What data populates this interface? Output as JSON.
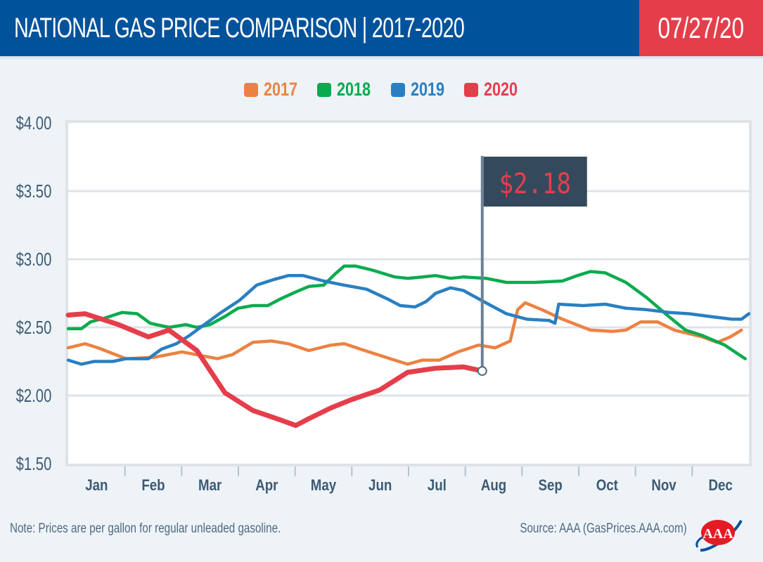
{
  "header": {
    "title": "NATIONAL GAS PRICE COMPARISON | 2017-2020",
    "date": "07/27/20"
  },
  "colors": {
    "header_blue": "#00529b",
    "header_red": "#e53e4b",
    "flag_bg": "#344a5c",
    "flag_text": "#e53e4b",
    "axis_text": "#3d5a73"
  },
  "footer": {
    "note": "Note: Prices are per gallon for regular unleaded gasoline.",
    "source": "Source: AAA (GasPrices.AAA.com)",
    "logo": "aaa-logo-icon"
  },
  "chart_data": {
    "type": "line",
    "title": "National Gas Price Comparison | 2017-2020",
    "xlabel": "",
    "ylabel": "",
    "x_unit": "day of year",
    "xlim": [
      0,
      365
    ],
    "ylim": [
      1.5,
      4.0
    ],
    "yticks": [
      1.5,
      2.0,
      2.5,
      3.0,
      3.5,
      4.0
    ],
    "ytick_labels": [
      "$1.50",
      "$2.00",
      "$2.50",
      "$3.00",
      "$3.50",
      "$4.00"
    ],
    "xtick_labels": [
      "Jan",
      "Feb",
      "Mar",
      "Apr",
      "May",
      "Jun",
      "Jul",
      "Aug",
      "Sep",
      "Oct",
      "Nov",
      "Dec"
    ],
    "grid": true,
    "legend_position": "top-center",
    "annotation": {
      "label": "$2.18",
      "series": "2020",
      "day": 222,
      "value": 2.18
    },
    "series": [
      {
        "name": "2017",
        "color": "#ec8242",
        "points": [
          [
            0,
            2.35
          ],
          [
            9,
            2.38
          ],
          [
            16,
            2.35
          ],
          [
            31,
            2.27
          ],
          [
            46,
            2.28
          ],
          [
            61,
            2.32
          ],
          [
            80,
            2.27
          ],
          [
            88,
            2.3
          ],
          [
            99,
            2.39
          ],
          [
            109,
            2.4
          ],
          [
            118,
            2.38
          ],
          [
            129,
            2.33
          ],
          [
            141,
            2.37
          ],
          [
            148,
            2.38
          ],
          [
            159,
            2.33
          ],
          [
            175,
            2.26
          ],
          [
            182,
            2.23
          ],
          [
            190,
            2.26
          ],
          [
            199,
            2.26
          ],
          [
            209,
            2.32
          ],
          [
            220,
            2.37
          ],
          [
            229,
            2.35
          ],
          [
            237,
            2.4
          ],
          [
            241,
            2.63
          ],
          [
            245,
            2.68
          ],
          [
            254,
            2.63
          ],
          [
            265,
            2.56
          ],
          [
            280,
            2.48
          ],
          [
            292,
            2.47
          ],
          [
            299,
            2.48
          ],
          [
            307,
            2.54
          ],
          [
            316,
            2.54
          ],
          [
            325,
            2.48
          ],
          [
            340,
            2.43
          ],
          [
            348,
            2.39
          ],
          [
            355,
            2.43
          ],
          [
            361,
            2.48
          ]
        ]
      },
      {
        "name": "2018",
        "color": "#0aab4f",
        "points": [
          [
            0,
            2.49
          ],
          [
            7,
            2.49
          ],
          [
            12,
            2.54
          ],
          [
            20,
            2.57
          ],
          [
            29,
            2.61
          ],
          [
            37,
            2.6
          ],
          [
            44,
            2.53
          ],
          [
            54,
            2.5
          ],
          [
            63,
            2.52
          ],
          [
            69,
            2.5
          ],
          [
            76,
            2.52
          ],
          [
            84,
            2.58
          ],
          [
            91,
            2.64
          ],
          [
            99,
            2.66
          ],
          [
            107,
            2.66
          ],
          [
            114,
            2.71
          ],
          [
            122,
            2.76
          ],
          [
            129,
            2.8
          ],
          [
            137,
            2.81
          ],
          [
            143,
            2.89
          ],
          [
            148,
            2.95
          ],
          [
            154,
            2.95
          ],
          [
            163,
            2.92
          ],
          [
            175,
            2.87
          ],
          [
            182,
            2.86
          ],
          [
            190,
            2.87
          ],
          [
            197,
            2.88
          ],
          [
            205,
            2.86
          ],
          [
            212,
            2.87
          ],
          [
            224,
            2.86
          ],
          [
            235,
            2.83
          ],
          [
            250,
            2.83
          ],
          [
            265,
            2.84
          ],
          [
            273,
            2.88
          ],
          [
            280,
            2.91
          ],
          [
            288,
            2.9
          ],
          [
            299,
            2.83
          ],
          [
            310,
            2.72
          ],
          [
            322,
            2.58
          ],
          [
            331,
            2.48
          ],
          [
            340,
            2.44
          ],
          [
            352,
            2.37
          ],
          [
            363,
            2.27
          ]
        ]
      },
      {
        "name": "2019",
        "color": "#2a7fc1",
        "points": [
          [
            0,
            2.26
          ],
          [
            7,
            2.23
          ],
          [
            14,
            2.25
          ],
          [
            24,
            2.25
          ],
          [
            31,
            2.27
          ],
          [
            43,
            2.27
          ],
          [
            50,
            2.34
          ],
          [
            58,
            2.38
          ],
          [
            65,
            2.44
          ],
          [
            73,
            2.52
          ],
          [
            82,
            2.61
          ],
          [
            92,
            2.7
          ],
          [
            101,
            2.81
          ],
          [
            110,
            2.85
          ],
          [
            118,
            2.88
          ],
          [
            126,
            2.88
          ],
          [
            137,
            2.84
          ],
          [
            148,
            2.81
          ],
          [
            160,
            2.78
          ],
          [
            171,
            2.71
          ],
          [
            178,
            2.66
          ],
          [
            186,
            2.65
          ],
          [
            192,
            2.69
          ],
          [
            197,
            2.75
          ],
          [
            205,
            2.79
          ],
          [
            212,
            2.77
          ],
          [
            224,
            2.68
          ],
          [
            235,
            2.6
          ],
          [
            246,
            2.56
          ],
          [
            258,
            2.55
          ],
          [
            261,
            2.53
          ],
          [
            263,
            2.67
          ],
          [
            276,
            2.66
          ],
          [
            288,
            2.67
          ],
          [
            299,
            2.64
          ],
          [
            310,
            2.63
          ],
          [
            322,
            2.61
          ],
          [
            333,
            2.6
          ],
          [
            344,
            2.58
          ],
          [
            356,
            2.56
          ],
          [
            361,
            2.56
          ],
          [
            365,
            2.6
          ]
        ]
      },
      {
        "name": "2020",
        "color": "#e53e4b",
        "points": [
          [
            0,
            2.59
          ],
          [
            9,
            2.6
          ],
          [
            27,
            2.52
          ],
          [
            43,
            2.43
          ],
          [
            54,
            2.48
          ],
          [
            69,
            2.33
          ],
          [
            84,
            2.02
          ],
          [
            99,
            1.89
          ],
          [
            114,
            1.82
          ],
          [
            122,
            1.78
          ],
          [
            129,
            1.83
          ],
          [
            141,
            1.91
          ],
          [
            152,
            1.97
          ],
          [
            167,
            2.04
          ],
          [
            182,
            2.17
          ],
          [
            197,
            2.2
          ],
          [
            212,
            2.21
          ],
          [
            222,
            2.18
          ]
        ]
      }
    ]
  }
}
